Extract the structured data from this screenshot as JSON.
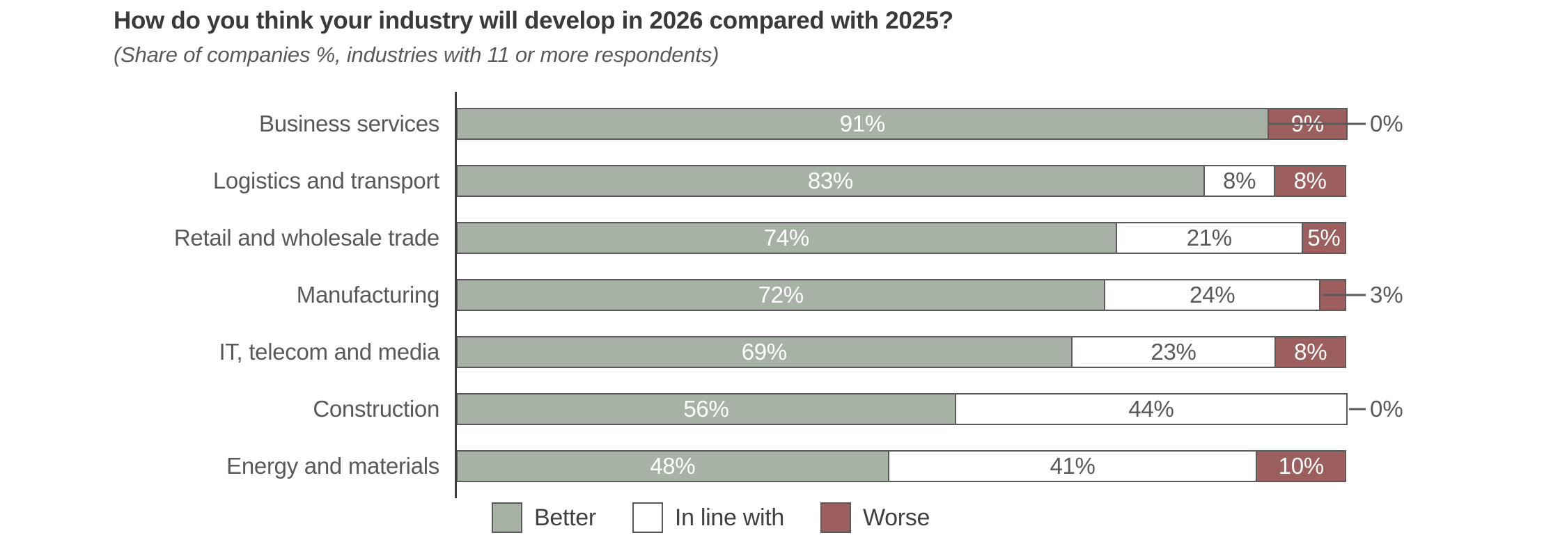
{
  "header": {
    "title": "How do you think your industry will develop in 2026 compared with 2025?",
    "subtitle": "(Share of companies %, industries with 11 or more respondents)"
  },
  "colors": {
    "better": "#a8b1a5",
    "in_line_with": "#ffffff",
    "worse": "#9d5e5e",
    "segment_border": "#5a5a5a",
    "axis_line": "#3f3f3f",
    "title_text": "#3a3a3a",
    "body_text": "#595959"
  },
  "legend": {
    "position": "bottom",
    "items": [
      {
        "label": "Better"
      },
      {
        "label": "In line with"
      },
      {
        "label": "Worse"
      }
    ]
  },
  "chart_data": {
    "type": "bar",
    "orientation": "horizontal",
    "stacked": true,
    "normalized_to_100": true,
    "grid": false,
    "xlim": [
      0,
      100
    ],
    "title": "How do you think your industry will develop in 2026 compared with 2025?",
    "subtitle": "(Share of companies %, industries with 11 or more respondents)",
    "xlabel": "",
    "ylabel": "",
    "value_suffix": "%",
    "inside_label_min_pct": 5,
    "categories": [
      "Business services",
      "Logistics and transport",
      "Retail and wholesale trade",
      "Manufacturing",
      "IT, telecom and media",
      "Construction",
      "Energy and materials"
    ],
    "series": [
      {
        "name": "Better",
        "slug": "better",
        "color": "#a8b1a5",
        "text_color": "#ffffff",
        "values": [
          91,
          83,
          74,
          72,
          69,
          56,
          48
        ]
      },
      {
        "name": "In line with",
        "slug": "in-line-with",
        "color": "#ffffff",
        "text_color": "#595959",
        "values": [
          0,
          8,
          21,
          24,
          23,
          44,
          41
        ]
      },
      {
        "name": "Worse",
        "slug": "worse",
        "color": "#9d5e5e",
        "text_color": "#ffffff",
        "values": [
          9,
          8,
          5,
          3,
          8,
          0,
          10
        ]
      }
    ],
    "outside_labels": [
      {
        "row": 0,
        "series": "In line with",
        "text": "0%",
        "leader_from_pct": 91
      },
      {
        "row": 3,
        "series": "Worse",
        "text": "3%",
        "leader_from_pct": 97
      },
      {
        "row": 5,
        "series": "Worse",
        "text": "0%",
        "leader_from_pct": 100
      }
    ]
  }
}
